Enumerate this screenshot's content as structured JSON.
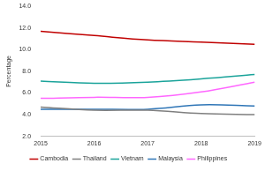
{
  "chart_data": {
    "type": "line",
    "y_label": "Percentage",
    "categories": [
      "2015",
      "2016",
      "2017",
      "2018",
      "2019"
    ],
    "series": [
      {
        "name": "Cambodia",
        "color": "#c00000",
        "values": [
          11.7,
          11.3,
          10.9,
          10.7,
          10.5
        ]
      },
      {
        "name": "Thailand",
        "color": "#7f7f7f",
        "values": [
          4.7,
          4.4,
          4.4,
          4.1,
          4.0
        ]
      },
      {
        "name": "Vietnam",
        "color": "#1aa39a",
        "values": [
          7.1,
          6.9,
          7.0,
          7.3,
          7.7
        ]
      },
      {
        "name": "Malaysia",
        "color": "#2e75b6",
        "values": [
          4.5,
          4.5,
          4.5,
          4.9,
          4.8
        ]
      },
      {
        "name": "Philippines",
        "color": "#ff66ff",
        "values": [
          5.5,
          5.6,
          5.6,
          6.1,
          7.0
        ]
      }
    ],
    "ylim": [
      2.0,
      14.0
    ],
    "yticks": [
      {
        "value": 2,
        "label": "2.0"
      },
      {
        "value": 4,
        "label": "4.0"
      },
      {
        "value": 6,
        "label": "6.0"
      },
      {
        "value": 8,
        "label": "8.0"
      },
      {
        "value": 10,
        "label": "10.0"
      },
      {
        "value": 12,
        "label": "12.0"
      },
      {
        "value": 14,
        "label": "14.0"
      }
    ],
    "grid": false,
    "legend": "bottom"
  }
}
